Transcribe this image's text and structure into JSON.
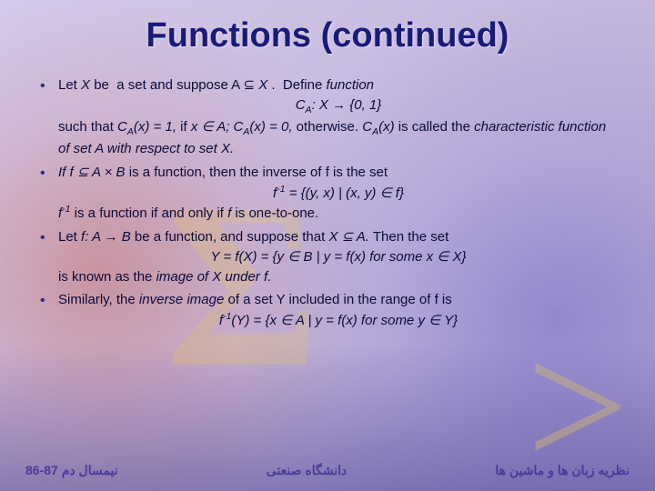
{
  "title": "Functions (continued)",
  "bullets": [
    {
      "line1": "Let X be  a set and suppose A ⊆ X .  Define function",
      "center": "C_A: X → {0, 1}",
      "line2": "such that C_A(x) = 1, if x ∈ A; C_A(x) = 0, otherwise. C_A(x) is called the characteristic function of set A with respect to set X."
    },
    {
      "line1": "If f ⊆ A × B is a function, then the inverse of f is the set",
      "center": "f^-1 = {(y, x) | (x, y) ∈ f}",
      "line2": "f^-1 is a function if and only if f is one-to-one."
    },
    {
      "line1": "Let f: A → B be a function, and suppose that X ⊆ A. Then the set",
      "center": "Y = f(X) = {y ∈ B | y = f(x) for some x ∈ X}",
      "line2": "is known as the image of X under f."
    },
    {
      "line1": "Similarly, the inverse image of a set Y included in the range of f is",
      "center": "f^-1(Y) = {x ∈ A | y = f(x) for some y ∈ Y}"
    }
  ],
  "footer": {
    "right": "نظریه زبان ها و ماشین ها",
    "center": "دانشگاه صنعتی",
    "left": "نیمسال دم 87-86"
  },
  "colors": {
    "title": "#1a1a7a",
    "body": "#0a0a3a",
    "footer": "#4a3a9a"
  },
  "fontsizes": {
    "title_pt": 29,
    "body_pt": 11,
    "footer_pt": 11
  }
}
